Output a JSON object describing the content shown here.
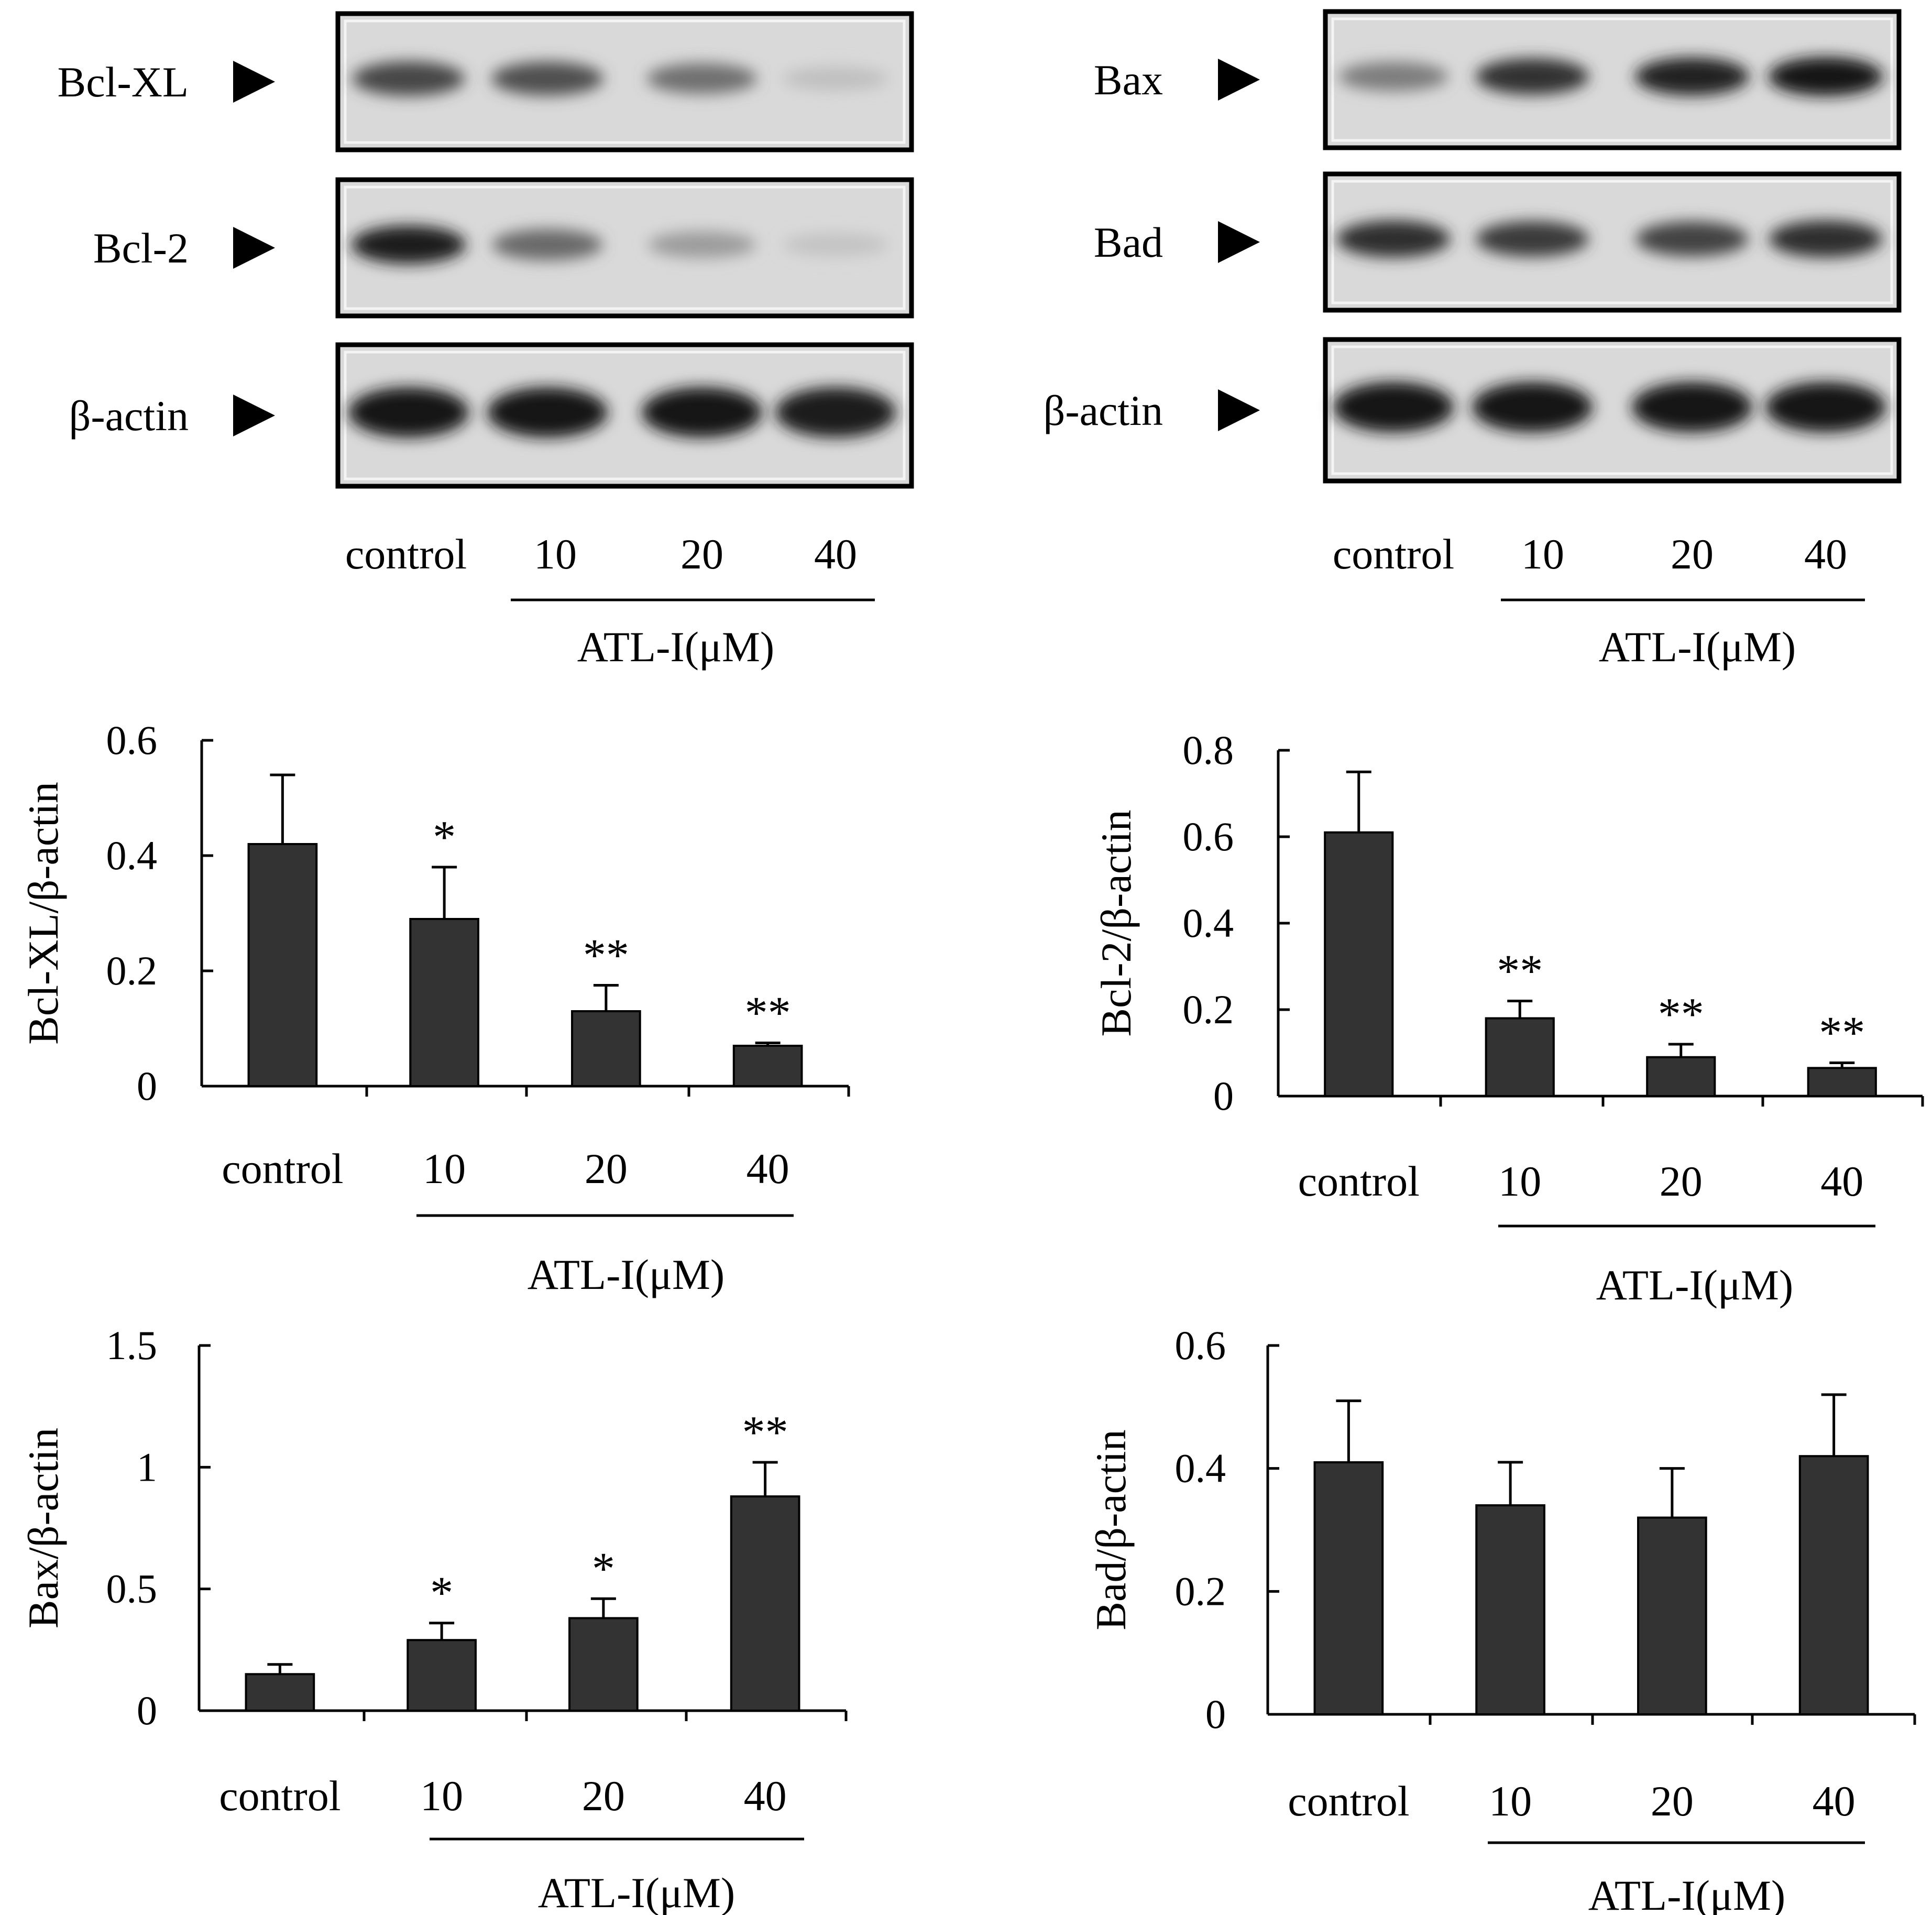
{
  "blots": [
    {
      "panel": "left",
      "rows": [
        {
          "label": "Bcl-XL",
          "bands": [
            0.72,
            0.68,
            0.52,
            0.12
          ]
        },
        {
          "label": "Bcl-2",
          "bands": [
            0.92,
            0.55,
            0.3,
            0.1
          ]
        },
        {
          "label": "β-actin",
          "bands": [
            0.97,
            0.95,
            0.95,
            0.92
          ]
        }
      ],
      "lanes": [
        "control",
        "10",
        "20",
        "40"
      ],
      "group_label": "ATL-I(μM)"
    },
    {
      "panel": "right",
      "rows": [
        {
          "label": "Bax",
          "bands": [
            0.45,
            0.82,
            0.9,
            0.95
          ]
        },
        {
          "label": "Bad",
          "bands": [
            0.85,
            0.78,
            0.74,
            0.85
          ]
        },
        {
          "label": "β-actin",
          "bands": [
            0.98,
            0.95,
            0.96,
            0.95
          ]
        }
      ],
      "lanes": [
        "control",
        "10",
        "20",
        "40"
      ],
      "group_label": "ATL-I(μM)"
    }
  ],
  "chart_data": [
    {
      "type": "bar",
      "ylabel": "Bcl-XL/β-actin",
      "categories": [
        "control",
        "10",
        "20",
        "40"
      ],
      "group_label": "ATL-I(μM)",
      "values": [
        0.42,
        0.29,
        0.13,
        0.07
      ],
      "errors": [
        0.12,
        0.09,
        0.045,
        0.005
      ],
      "significance": [
        "",
        "*",
        "**",
        "**"
      ],
      "ylim": [
        0,
        0.6
      ],
      "yticks": [
        "0",
        "0.2",
        "0.4",
        "0.6"
      ],
      "bar_color": "#333333"
    },
    {
      "type": "bar",
      "ylabel": "Bcl-2/β-actin",
      "categories": [
        "control",
        "10",
        "20",
        "40"
      ],
      "group_label": "ATL-I(μM)",
      "values": [
        0.61,
        0.18,
        0.09,
        0.065
      ],
      "errors": [
        0.14,
        0.04,
        0.03,
        0.012
      ],
      "significance": [
        "",
        "**",
        "**",
        "**"
      ],
      "ylim": [
        0,
        0.8
      ],
      "yticks": [
        "0",
        "0.2",
        "0.4",
        "0.6",
        "0.8"
      ],
      "bar_color": "#333333"
    },
    {
      "type": "bar",
      "ylabel": "Bax/β-actin",
      "categories": [
        "control",
        "10",
        "20",
        "40"
      ],
      "group_label": "ATL-I(μM)",
      "values": [
        0.15,
        0.29,
        0.38,
        0.88
      ],
      "errors": [
        0.04,
        0.07,
        0.08,
        0.14
      ],
      "significance": [
        "",
        "*",
        "*",
        "**"
      ],
      "ylim": [
        0,
        1.5
      ],
      "yticks": [
        "0",
        "0.5",
        "1",
        "1.5"
      ],
      "bar_color": "#333333"
    },
    {
      "type": "bar",
      "ylabel": "Bad/β-actin",
      "categories": [
        "control",
        "10",
        "20",
        "40"
      ],
      "group_label": "ATL-I(μM)",
      "values": [
        0.41,
        0.34,
        0.32,
        0.42
      ],
      "errors": [
        0.1,
        0.07,
        0.08,
        0.1
      ],
      "significance": [
        "",
        "",
        "",
        ""
      ],
      "ylim": [
        0,
        0.6
      ],
      "yticks": [
        "0",
        "0.2",
        "0.4",
        "0.6"
      ],
      "bar_color": "#333333"
    }
  ]
}
